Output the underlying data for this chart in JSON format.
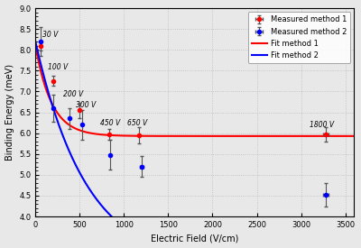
{
  "xlabel": "Electric Field (V/cm)",
  "ylabel": "Binding Energy (meV)",
  "xlim": [
    0,
    3600
  ],
  "ylim": [
    4.0,
    9.0
  ],
  "yticks": [
    4.0,
    4.5,
    5.0,
    5.5,
    6.0,
    6.5,
    7.0,
    7.5,
    8.0,
    8.5,
    9.0
  ],
  "xticks": [
    0,
    500,
    1000,
    1500,
    2000,
    2500,
    3000,
    3500
  ],
  "method1_x": [
    60,
    200,
    500,
    830,
    1170,
    3280
  ],
  "method1_y": [
    8.1,
    7.25,
    6.55,
    5.97,
    5.95,
    5.97
  ],
  "method1_yerr": [
    0.12,
    0.12,
    0.18,
    0.12,
    0.2,
    0.18
  ],
  "method1_xerr": [
    0,
    0,
    0,
    0,
    0,
    30
  ],
  "method2_x": [
    60,
    200,
    380,
    530,
    840,
    1200,
    3280
  ],
  "method2_y": [
    8.2,
    6.6,
    6.35,
    6.2,
    5.48,
    5.2,
    4.52
  ],
  "method2_yerr": [
    0.35,
    0.32,
    0.25,
    0.35,
    0.35,
    0.25,
    0.28
  ],
  "method2_xerr": [
    0,
    0,
    0,
    0,
    0,
    20,
    30
  ],
  "fit1_E0": 5.93,
  "fit1_A": 2.18,
  "fit1_alpha": 0.0055,
  "fit2_E0": 2.8,
  "fit2_A": 5.4,
  "fit2_alpha": 0.00175,
  "bg_color": "#e8e8e8",
  "grid_color": "#bbbbbb",
  "ann_30V_x": 75,
  "ann_30V_y": 8.3,
  "ann_100V_x": 145,
  "ann_100V_y": 7.52,
  "ann_200V_x": 315,
  "ann_200V_y": 6.88,
  "ann_300V_x": 460,
  "ann_300V_y": 6.63,
  "ann_450V_x": 735,
  "ann_450V_y": 6.18,
  "ann_650V_x": 1035,
  "ann_650V_y": 6.18,
  "ann_1800V_x": 3100,
  "ann_1800V_y": 6.15
}
